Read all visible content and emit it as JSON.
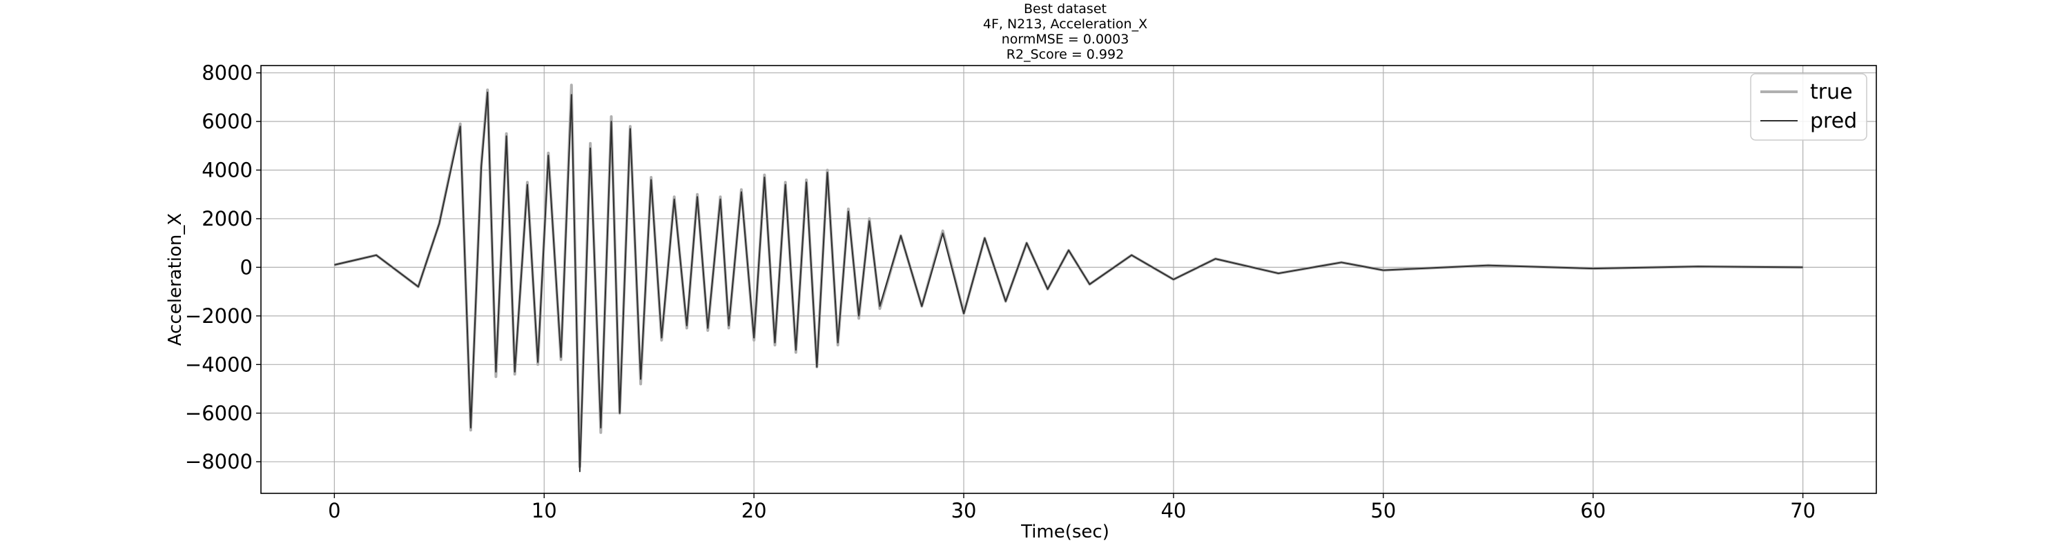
{
  "chart_data": {
    "type": "line",
    "title_lines": [
      "Best dataset",
      "4F, N213, Acceleration_X",
      "normMSE = 0.0003",
      "R2_Score = 0.992"
    ],
    "xlabel": "Time(sec)",
    "ylabel": "Acceleration_X",
    "xlim": [
      -3.5,
      73.5
    ],
    "ylim": [
      -9300,
      8300
    ],
    "xticks": [
      0,
      10,
      20,
      30,
      40,
      50,
      60,
      70
    ],
    "yticks": [
      -8000,
      -6000,
      -4000,
      -2000,
      0,
      2000,
      4000,
      6000,
      8000
    ],
    "xtick_labels": [
      "0",
      "10",
      "20",
      "30",
      "40",
      "50",
      "60",
      "70"
    ],
    "ytick_labels": [
      "−8000",
      "−6000",
      "−4000",
      "−2000",
      "0",
      "2000",
      "4000",
      "6000",
      "8000"
    ],
    "grid": true,
    "legend_position": "top-right",
    "series": [
      {
        "name": "true",
        "color": "#b0b0b0",
        "x": [
          0,
          2,
          4,
          5,
          6,
          6.5,
          7.0,
          7.3,
          7.7,
          8.2,
          8.6,
          9.2,
          9.7,
          10.2,
          10.8,
          11.3,
          11.7,
          12.2,
          12.7,
          13.2,
          13.6,
          14.1,
          14.6,
          15.1,
          15.6,
          16.2,
          16.8,
          17.3,
          17.8,
          18.4,
          18.8,
          19.4,
          20.0,
          20.5,
          21.0,
          21.5,
          22.0,
          22.5,
          23.0,
          23.5,
          24.0,
          24.5,
          25.0,
          25.5,
          26.0,
          27.0,
          28.0,
          29.0,
          30.0,
          31.0,
          32.0,
          33.0,
          34.0,
          35.0,
          36.0,
          38.0,
          40.0,
          42.0,
          45.0,
          48.0,
          50.0,
          55.0,
          60.0,
          65.0,
          70.0
        ],
        "y": [
          100,
          500,
          -800,
          1800,
          5900,
          -6700,
          4200,
          7300,
          -4500,
          5500,
          -4400,
          3500,
          -4000,
          4700,
          -3800,
          7500,
          -8200,
          5100,
          -6800,
          6200,
          -6000,
          5800,
          -4800,
          3700,
          -3000,
          2900,
          -2500,
          3000,
          -2600,
          2900,
          -2500,
          3200,
          -3000,
          3800,
          -3200,
          3500,
          -3500,
          3600,
          -4100,
          4000,
          -3200,
          2400,
          -2100,
          2000,
          -1700,
          1300,
          -1600,
          1500,
          -1900,
          1200,
          -1400,
          1000,
          -900,
          700,
          -700,
          500,
          -500,
          350,
          -250,
          200,
          -120,
          80,
          -50,
          30,
          0
        ]
      },
      {
        "name": "pred",
        "color": "#303030",
        "x": [
          0,
          2,
          4,
          5,
          6,
          6.5,
          7.0,
          7.3,
          7.7,
          8.2,
          8.6,
          9.2,
          9.7,
          10.2,
          10.8,
          11.3,
          11.7,
          12.2,
          12.7,
          13.2,
          13.6,
          14.1,
          14.6,
          15.1,
          15.6,
          16.2,
          16.8,
          17.3,
          17.8,
          18.4,
          18.8,
          19.4,
          20.0,
          20.5,
          21.0,
          21.5,
          22.0,
          22.5,
          23.0,
          23.5,
          24.0,
          24.5,
          25.0,
          25.5,
          26.0,
          27.0,
          28.0,
          29.0,
          30.0,
          31.0,
          32.0,
          33.0,
          34.0,
          35.0,
          36.0,
          38.0,
          40.0,
          42.0,
          45.0,
          48.0,
          50.0,
          55.0,
          60.0,
          65.0,
          70.0
        ],
        "y": [
          100,
          500,
          -800,
          1800,
          5800,
          -6600,
          4100,
          7200,
          -4300,
          5400,
          -4300,
          3400,
          -3900,
          4600,
          -3700,
          7100,
          -8400,
          4900,
          -6600,
          6000,
          -6000,
          5700,
          -4600,
          3600,
          -2900,
          2800,
          -2400,
          2900,
          -2500,
          2800,
          -2400,
          3100,
          -2900,
          3700,
          -3100,
          3400,
          -3400,
          3500,
          -4100,
          3900,
          -3100,
          2300,
          -2000,
          1900,
          -1600,
          1300,
          -1600,
          1400,
          -1900,
          1200,
          -1400,
          1000,
          -900,
          700,
          -700,
          500,
          -500,
          350,
          -250,
          200,
          -120,
          80,
          -50,
          30,
          0
        ]
      }
    ]
  }
}
